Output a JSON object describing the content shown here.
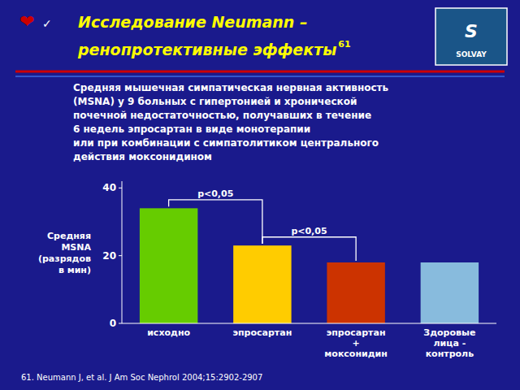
{
  "chart_data": {
    "type": "bar",
    "title": [
      "Исследование Neumann –",
      "ренопротективные эффекты"
    ],
    "title_superscript": "61",
    "symbols": [
      "❤",
      "✓"
    ],
    "logo": [
      "S",
      "SOLVAY"
    ],
    "subtitle": [
      "Средняя мышечная симпатическая нервная активность",
      "(MSNA) у 9 больных с гипертонией и хронической",
      "почечной недостаточностью, получавших в течение",
      "6 недель эпросартан в виде монотерапии",
      "или при комбинации с симпатолитиком центрального",
      "действия моксонидином"
    ],
    "ylabel": "Средняя\nMSNA\n(разрядов\nв мин)",
    "categories": [
      "исходно",
      "эпросартан",
      "эпросартан\n+\nмоксонидин",
      "Здоровые\nлица -\nконтроль"
    ],
    "values": [
      34,
      23,
      18,
      18
    ],
    "colors": [
      "#66cc00",
      "#ffcc00",
      "#cc3300",
      "#88bbdd"
    ],
    "ylim": [
      0,
      42
    ],
    "yticks": [
      0,
      20,
      40
    ],
    "grid": false,
    "annotations": [
      {
        "text": "p<0,05",
        "from": 0,
        "to": 1
      },
      {
        "text": "p<0,05",
        "from": 1,
        "to": 2
      }
    ],
    "footnote": "61. Neumann J, et al. J Am Soc Nephrol 2004;15:2902-2907"
  }
}
